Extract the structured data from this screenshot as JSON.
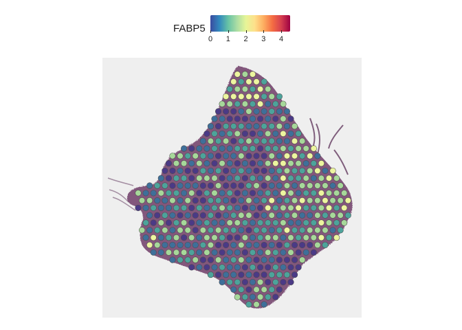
{
  "legend": {
    "title": "FABP5",
    "ticks": [
      "0",
      "1",
      "2",
      "3",
      "4"
    ],
    "tick_values": [
      0,
      1,
      2,
      3,
      4
    ],
    "range": [
      0,
      4.5
    ],
    "palette": [
      "#3b4ba0",
      "#3288bd",
      "#66c2a5",
      "#abdda4",
      "#e6f598",
      "#fee08b",
      "#fdae61",
      "#f46d43",
      "#d53e4f",
      "#9e0142"
    ]
  },
  "image": {
    "kind": "spatial-transcriptomics-spot-plot",
    "tissue_color": "#7a4a73",
    "background_color": "#efefef",
    "spot_colors": {
      "low": "#4b3a86",
      "mid_low": "#3e6f9a",
      "mid": "#4da39b",
      "mid_high": "#a7d89a",
      "high": "#edf59f"
    }
  }
}
